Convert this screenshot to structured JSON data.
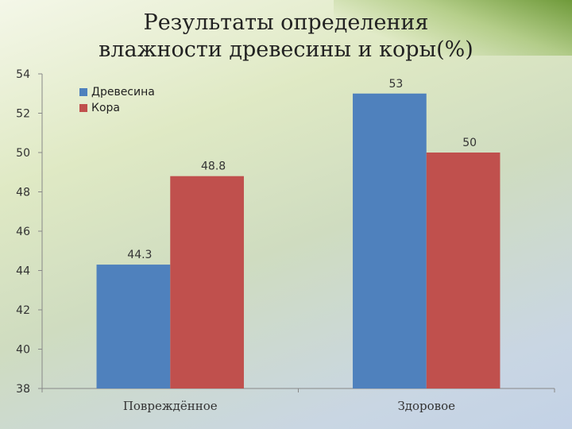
{
  "chart_data": {
    "type": "bar",
    "title": "Результаты определения влажности древесины и коры(%)",
    "categories": [
      "Повреждённое",
      "Здоровое"
    ],
    "series": [
      {
        "name": "Древесина",
        "values": [
          44.3,
          53
        ],
        "labels": [
          "44.3",
          "53"
        ],
        "color": "#4f81bd"
      },
      {
        "name": "Кора",
        "values": [
          48.8,
          50
        ],
        "labels": [
          "48.8",
          "50"
        ],
        "color": "#c0504d"
      }
    ],
    "ylim": [
      38,
      54
    ],
    "yticks": [
      "38",
      "40",
      "42",
      "44",
      "46",
      "48",
      "50",
      "52",
      "54"
    ],
    "xlabel": "",
    "ylabel": "",
    "grid": false,
    "legend": "top-left"
  }
}
